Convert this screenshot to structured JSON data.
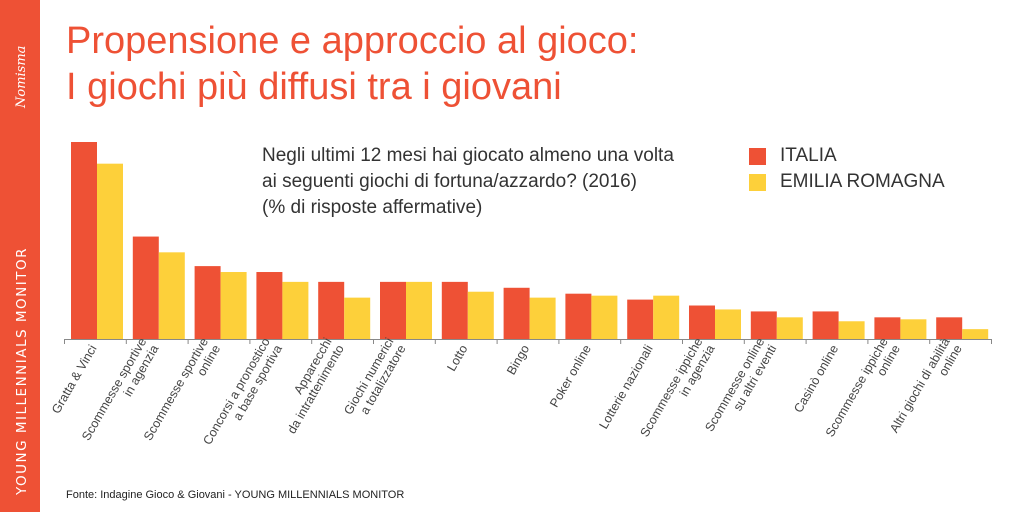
{
  "sidebar": {
    "brand": "Nomisma",
    "label": "YOUNG MILLENNIALS MONITOR",
    "color": "#ee5135"
  },
  "title": {
    "line1": "Propensione e approccio al gioco:",
    "line2": "I giochi più diffusi tra i giovani"
  },
  "question": {
    "line1": "Negli ultimi 12 mesi hai giocato almeno una volta",
    "line2": "ai seguenti giochi di fortuna/azzardo? (2016)",
    "line3": "(% di risposte affermative)"
  },
  "legend": {
    "position": "top-right",
    "items": [
      {
        "label": "ITALIA",
        "color": "#ee5135"
      },
      {
        "label": "EMILIA ROMAGNA",
        "color": "#fdd03a"
      }
    ]
  },
  "chart_data": {
    "type": "bar",
    "title": "",
    "xlabel": "",
    "ylabel": "",
    "ylim": [
      0,
      100
    ],
    "grid": false,
    "value_axis_shown": false,
    "categories": [
      [
        "Gratta & Vinci"
      ],
      [
        "Scommesse sportive",
        "in agenzia"
      ],
      [
        "Scommesse sportive",
        "online"
      ],
      [
        "Concorsi a pronostico",
        "a base sportiva"
      ],
      [
        "Apparecchi",
        "da intrattenimento"
      ],
      [
        "Giochi numerici",
        "a totalizzatore"
      ],
      [
        "Lotto"
      ],
      [
        "Bingo"
      ],
      [
        "Poker online"
      ],
      [
        "Lotterie nazionali"
      ],
      [
        "Scommesse ippiche",
        "in agenzia"
      ],
      [
        "Scommesse online",
        "su altri eventi"
      ],
      [
        "Casinò online"
      ],
      [
        "Scommesse ippiche",
        "online"
      ],
      [
        "Altri giochi di abilità",
        "online"
      ]
    ],
    "series": [
      {
        "name": "ITALIA",
        "color": "#ee5135",
        "values": [
          100,
          52,
          37,
          34,
          29,
          29,
          29,
          26,
          23,
          20,
          17,
          14,
          14,
          11,
          11
        ]
      },
      {
        "name": "EMILIA ROMAGNA",
        "color": "#fdd03a",
        "values": [
          89,
          44,
          34,
          29,
          21,
          29,
          24,
          21,
          22,
          22,
          15,
          11,
          9,
          10,
          5
        ]
      }
    ]
  },
  "source": "Fonte: Indagine Gioco & Giovani - YOUNG MILLENNIALS MONITOR"
}
